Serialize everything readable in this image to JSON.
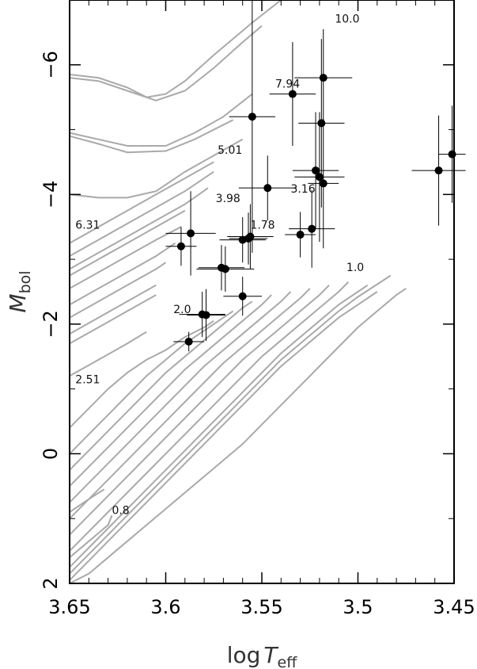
{
  "chart_data": {
    "type": "scatter",
    "xlabel": "log T_eff",
    "ylabel": "M_bol",
    "xlim": [
      3.65,
      3.45
    ],
    "ylim": [
      2,
      -7
    ],
    "x_ticks": [
      "3.65",
      "3.6",
      "3.55",
      "3.5",
      "3.45"
    ],
    "y_ticks": [
      "−6",
      "−4",
      "−2",
      "0",
      "2"
    ],
    "curve_labels": [
      {
        "text": "10.0",
        "x": 3.512,
        "y": -6.65
      },
      {
        "text": "7.94",
        "x": 3.543,
        "y": -5.65
      },
      {
        "text": "5.01",
        "x": 3.573,
        "y": -4.63
      },
      {
        "text": "3.98",
        "x": 3.574,
        "y": -3.88
      },
      {
        "text": "3.16",
        "x": 3.535,
        "y": -4.03
      },
      {
        "text": "6.31",
        "x": 3.647,
        "y": -3.47
      },
      {
        "text": "1.78",
        "x": 3.556,
        "y": -3.47
      },
      {
        "text": "1.0",
        "x": 3.506,
        "y": -2.82
      },
      {
        "text": "2.0",
        "x": 3.596,
        "y": -2.17
      },
      {
        "text": "2.51",
        "x": 3.647,
        "y": -1.09
      },
      {
        "text": "0.8",
        "x": 3.628,
        "y": 0.93
      }
    ],
    "points": [
      {
        "x": 3.592,
        "y": -3.2,
        "dx": 0.008,
        "dy": 0.3
      },
      {
        "x": 3.587,
        "y": -3.4,
        "dx": 0.013,
        "dy": 0.65
      },
      {
        "x": 3.56,
        "y": -3.3,
        "dx": 0.012,
        "dy": 0.35
      },
      {
        "x": 3.557,
        "y": -3.32,
        "dx": 0.01,
        "dy": 0.4
      },
      {
        "x": 3.556,
        "y": -3.35,
        "dx": 0.012,
        "dy": 0.5
      },
      {
        "x": 3.555,
        "y": -5.2,
        "dx": 0.012,
        "dy": 2.1
      },
      {
        "x": 3.547,
        "y": -4.1,
        "dx": 0.015,
        "dy": 0.5
      },
      {
        "x": 3.534,
        "y": -5.55,
        "dx": 0.012,
        "dy": 0.8
      },
      {
        "x": 3.518,
        "y": -5.8,
        "dx": 0.015,
        "dy": 0.75
      },
      {
        "x": 3.519,
        "y": -5.1,
        "dx": 0.012,
        "dy": 1.3
      },
      {
        "x": 3.522,
        "y": -4.37,
        "dx": 0.012,
        "dy": 0.9
      },
      {
        "x": 3.52,
        "y": -4.27,
        "dx": 0.013,
        "dy": 1.0
      },
      {
        "x": 3.518,
        "y": -4.17,
        "dx": 0.008,
        "dy": 1.0
      },
      {
        "x": 3.53,
        "y": -3.38,
        "dx": 0.008,
        "dy": 0.35
      },
      {
        "x": 3.524,
        "y": -3.47,
        "dx": 0.012,
        "dy": 0.6
      },
      {
        "x": 3.571,
        "y": -2.87,
        "dx": 0.012,
        "dy": 0.35
      },
      {
        "x": 3.569,
        "y": -2.85,
        "dx": 0.015,
        "dy": 0.35
      },
      {
        "x": 3.56,
        "y": -2.43,
        "dx": 0.01,
        "dy": 0.3
      },
      {
        "x": 3.581,
        "y": -2.15,
        "dx": 0.012,
        "dy": 0.35
      },
      {
        "x": 3.579,
        "y": -2.14,
        "dx": 0.01,
        "dy": 0.4
      },
      {
        "x": 3.588,
        "y": -1.73,
        "dx": 0.008,
        "dy": 0.15
      },
      {
        "x": 3.458,
        "y": -4.37,
        "dx": 0.014,
        "dy": 0.85
      },
      {
        "x": 3.451,
        "y": -4.62,
        "dx": 0.007,
        "dy": 0.75
      }
    ],
    "tracks": [
      [
        [
          3.65,
          -5.85
        ],
        [
          3.635,
          -5.8
        ],
        [
          3.62,
          -5.65
        ],
        [
          3.61,
          -5.5
        ],
        [
          3.6,
          -5.55
        ],
        [
          3.59,
          -5.75
        ],
        [
          3.575,
          -6.15
        ],
        [
          3.555,
          -6.65
        ],
        [
          3.54,
          -7.0
        ]
      ],
      [
        [
          3.65,
          -5.8
        ],
        [
          3.635,
          -5.75
        ],
        [
          3.62,
          -5.6
        ],
        [
          3.605,
          -5.45
        ],
        [
          3.59,
          -5.6
        ],
        [
          3.575,
          -5.95
        ],
        [
          3.56,
          -6.35
        ],
        [
          3.55,
          -6.6
        ]
      ],
      [
        [
          3.65,
          -4.95
        ],
        [
          3.635,
          -4.85
        ],
        [
          3.62,
          -4.75
        ],
        [
          3.6,
          -4.75
        ],
        [
          3.585,
          -4.95
        ],
        [
          3.57,
          -5.2
        ],
        [
          3.555,
          -5.55
        ]
      ],
      [
        [
          3.65,
          -4.9
        ],
        [
          3.635,
          -4.78
        ],
        [
          3.62,
          -4.65
        ],
        [
          3.6,
          -4.67
        ],
        [
          3.585,
          -4.85
        ],
        [
          3.565,
          -5.15
        ]
      ],
      [
        [
          3.65,
          -4.0
        ],
        [
          3.635,
          -3.95
        ],
        [
          3.62,
          -3.95
        ],
        [
          3.605,
          -4.05
        ],
        [
          3.59,
          -4.35
        ],
        [
          3.575,
          -4.6
        ],
        [
          3.56,
          -4.85
        ]
      ],
      [
        [
          3.65,
          -3.25
        ],
        [
          3.635,
          -3.5
        ],
        [
          3.62,
          -3.75
        ],
        [
          3.605,
          -4.0
        ],
        [
          3.59,
          -4.25
        ],
        [
          3.575,
          -4.5
        ]
      ],
      [
        [
          3.65,
          -3.05
        ],
        [
          3.635,
          -3.3
        ],
        [
          3.62,
          -3.55
        ],
        [
          3.605,
          -3.8
        ],
        [
          3.59,
          -4.05
        ],
        [
          3.575,
          -4.35
        ]
      ],
      [
        [
          3.65,
          -2.85
        ],
        [
          3.635,
          -3.1
        ],
        [
          3.62,
          -3.35
        ],
        [
          3.605,
          -3.6
        ],
        [
          3.59,
          -3.85
        ],
        [
          3.578,
          -4.1
        ]
      ],
      [
        [
          3.65,
          -2.75
        ],
        [
          3.635,
          -3.0
        ],
        [
          3.62,
          -3.25
        ],
        [
          3.605,
          -3.5
        ],
        [
          3.59,
          -3.75
        ]
      ],
      [
        [
          3.65,
          -2.55
        ],
        [
          3.635,
          -2.8
        ],
        [
          3.62,
          -3.05
        ],
        [
          3.605,
          -3.3
        ],
        [
          3.592,
          -3.5
        ]
      ],
      [
        [
          3.65,
          -2.3
        ],
        [
          3.635,
          -2.55
        ],
        [
          3.62,
          -2.8
        ],
        [
          3.605,
          -3.05
        ],
        [
          3.595,
          -3.25
        ]
      ],
      [
        [
          3.65,
          -2.1
        ],
        [
          3.635,
          -2.35
        ],
        [
          3.62,
          -2.6
        ],
        [
          3.605,
          -2.85
        ],
        [
          3.6,
          -2.95
        ]
      ],
      [
        [
          3.65,
          -1.85
        ],
        [
          3.635,
          -2.1
        ],
        [
          3.62,
          -2.35
        ],
        [
          3.605,
          -2.6
        ]
      ],
      [
        [
          3.65,
          -1.7
        ],
        [
          3.635,
          -1.95
        ],
        [
          3.62,
          -2.2
        ],
        [
          3.605,
          -2.45
        ]
      ],
      [
        [
          3.65,
          -1.2
        ],
        [
          3.635,
          -1.45
        ],
        [
          3.62,
          -1.7
        ],
        [
          3.61,
          -1.88
        ]
      ],
      [
        [
          3.65,
          -0.4
        ],
        [
          3.64,
          -0.7
        ],
        [
          3.63,
          -1.0
        ],
        [
          3.62,
          -1.25
        ],
        [
          3.61,
          -1.45
        ],
        [
          3.6,
          -1.6
        ],
        [
          3.59,
          -1.8
        ],
        [
          3.58,
          -1.95
        ],
        [
          3.575,
          -2.05
        ]
      ],
      [
        [
          3.65,
          0.0
        ],
        [
          3.64,
          -0.3
        ],
        [
          3.63,
          -0.6
        ],
        [
          3.62,
          -0.9
        ],
        [
          3.61,
          -1.2
        ],
        [
          3.6,
          -1.45
        ],
        [
          3.59,
          -1.7
        ],
        [
          3.58,
          -1.9
        ],
        [
          3.57,
          -2.1
        ],
        [
          3.565,
          -2.2
        ]
      ],
      [
        [
          3.65,
          0.25
        ],
        [
          3.64,
          -0.05
        ],
        [
          3.63,
          -0.35
        ],
        [
          3.62,
          -0.65
        ],
        [
          3.61,
          -0.95
        ],
        [
          3.6,
          -1.25
        ],
        [
          3.59,
          -1.5
        ],
        [
          3.58,
          -1.75
        ],
        [
          3.57,
          -2.0
        ],
        [
          3.56,
          -2.25
        ],
        [
          3.555,
          -2.35
        ]
      ],
      [
        [
          3.65,
          0.5
        ],
        [
          3.64,
          0.2
        ],
        [
          3.63,
          -0.1
        ],
        [
          3.62,
          -0.4
        ],
        [
          3.61,
          -0.7
        ],
        [
          3.6,
          -1.0
        ],
        [
          3.59,
          -1.3
        ],
        [
          3.58,
          -1.55
        ],
        [
          3.57,
          -1.8
        ],
        [
          3.56,
          -2.05
        ],
        [
          3.55,
          -2.3
        ],
        [
          3.545,
          -2.45
        ]
      ],
      [
        [
          3.65,
          0.75
        ],
        [
          3.64,
          0.45
        ],
        [
          3.63,
          0.15
        ],
        [
          3.62,
          -0.15
        ],
        [
          3.61,
          -0.45
        ],
        [
          3.6,
          -0.75
        ],
        [
          3.59,
          -1.05
        ],
        [
          3.58,
          -1.35
        ],
        [
          3.57,
          -1.6
        ],
        [
          3.56,
          -1.85
        ],
        [
          3.55,
          -2.1
        ],
        [
          3.54,
          -2.35
        ],
        [
          3.535,
          -2.5
        ]
      ],
      [
        [
          3.65,
          1.0
        ],
        [
          3.64,
          0.7
        ],
        [
          3.63,
          0.4
        ],
        [
          3.62,
          0.1
        ],
        [
          3.61,
          -0.2
        ],
        [
          3.6,
          -0.5
        ],
        [
          3.59,
          -0.8
        ],
        [
          3.58,
          -1.1
        ],
        [
          3.57,
          -1.4
        ],
        [
          3.56,
          -1.65
        ],
        [
          3.55,
          -1.9
        ],
        [
          3.54,
          -2.15
        ],
        [
          3.53,
          -2.4
        ],
        [
          3.525,
          -2.55
        ]
      ],
      [
        [
          3.65,
          1.25
        ],
        [
          3.64,
          0.95
        ],
        [
          3.63,
          0.65
        ],
        [
          3.62,
          0.35
        ],
        [
          3.61,
          0.05
        ],
        [
          3.6,
          -0.25
        ],
        [
          3.59,
          -0.55
        ],
        [
          3.58,
          -0.85
        ],
        [
          3.57,
          -1.15
        ],
        [
          3.56,
          -1.45
        ],
        [
          3.55,
          -1.7
        ],
        [
          3.54,
          -1.95
        ],
        [
          3.53,
          -2.2
        ],
        [
          3.52,
          -2.45
        ],
        [
          3.515,
          -2.6
        ]
      ],
      [
        [
          3.65,
          1.5
        ],
        [
          3.64,
          1.2
        ],
        [
          3.63,
          0.9
        ],
        [
          3.62,
          0.6
        ],
        [
          3.61,
          0.3
        ],
        [
          3.6,
          0.0
        ],
        [
          3.59,
          -0.3
        ],
        [
          3.58,
          -0.6
        ],
        [
          3.57,
          -0.9
        ],
        [
          3.56,
          -1.2
        ],
        [
          3.55,
          -1.5
        ],
        [
          3.54,
          -1.75
        ],
        [
          3.53,
          -2.0
        ],
        [
          3.52,
          -2.25
        ],
        [
          3.51,
          -2.5
        ],
        [
          3.505,
          -2.65
        ]
      ],
      [
        [
          3.65,
          1.75
        ],
        [
          3.64,
          1.45
        ],
        [
          3.63,
          1.15
        ],
        [
          3.62,
          0.85
        ],
        [
          3.61,
          0.55
        ],
        [
          3.6,
          0.25
        ],
        [
          3.59,
          -0.05
        ],
        [
          3.58,
          -0.35
        ],
        [
          3.57,
          -0.65
        ],
        [
          3.56,
          -0.95
        ],
        [
          3.55,
          -1.25
        ],
        [
          3.54,
          -1.55
        ],
        [
          3.53,
          -1.8
        ],
        [
          3.52,
          -2.05
        ],
        [
          3.51,
          -2.3
        ],
        [
          3.5,
          -2.5
        ],
        [
          3.495,
          -2.6
        ]
      ],
      [
        [
          3.65,
          1.95
        ],
        [
          3.64,
          1.65
        ],
        [
          3.63,
          1.35
        ],
        [
          3.62,
          1.05
        ],
        [
          3.61,
          0.75
        ],
        [
          3.6,
          0.45
        ],
        [
          3.59,
          0.15
        ],
        [
          3.58,
          -0.15
        ],
        [
          3.57,
          -0.45
        ],
        [
          3.56,
          -0.75
        ],
        [
          3.55,
          -1.05
        ],
        [
          3.54,
          -1.35
        ],
        [
          3.53,
          -1.6
        ],
        [
          3.52,
          -1.85
        ],
        [
          3.51,
          -2.1
        ],
        [
          3.5,
          -2.3
        ],
        [
          3.49,
          -2.5
        ]
      ],
      [
        [
          3.65,
          2.0
        ],
        [
          3.64,
          1.85
        ],
        [
          3.63,
          1.6
        ],
        [
          3.62,
          1.35
        ],
        [
          3.61,
          1.1
        ],
        [
          3.6,
          0.85
        ],
        [
          3.59,
          0.6
        ],
        [
          3.58,
          0.35
        ],
        [
          3.57,
          0.1
        ],
        [
          3.56,
          -0.15
        ],
        [
          3.55,
          -0.45
        ],
        [
          3.54,
          -0.75
        ],
        [
          3.53,
          -1.05
        ],
        [
          3.52,
          -1.35
        ],
        [
          3.51,
          -1.65
        ],
        [
          3.5,
          -1.95
        ],
        [
          3.49,
          -2.2
        ],
        [
          3.48,
          -2.45
        ],
        [
          3.475,
          -2.55
        ]
      ],
      [
        [
          3.65,
          1.6
        ],
        [
          3.64,
          1.35
        ],
        [
          3.63,
          1.1
        ],
        [
          3.628,
          0.95
        ]
      ],
      [
        [
          3.65,
          0.9
        ],
        [
          3.64,
          0.7
        ],
        [
          3.632,
          0.55
        ]
      ],
      [
        [
          3.65,
          1.85
        ],
        [
          3.64,
          1.55
        ],
        [
          3.63,
          1.25
        ],
        [
          3.62,
          0.95
        ],
        [
          3.61,
          0.65
        ],
        [
          3.6,
          0.35
        ],
        [
          3.59,
          0.05
        ],
        [
          3.58,
          -0.25
        ],
        [
          3.57,
          -0.55
        ],
        [
          3.56,
          -0.85
        ],
        [
          3.55,
          -1.15
        ],
        [
          3.54,
          -1.45
        ],
        [
          3.53,
          -1.7
        ],
        [
          3.52,
          -1.95
        ],
        [
          3.51,
          -2.2
        ],
        [
          3.5,
          -2.42
        ],
        [
          3.483,
          -2.75
        ]
      ]
    ]
  }
}
